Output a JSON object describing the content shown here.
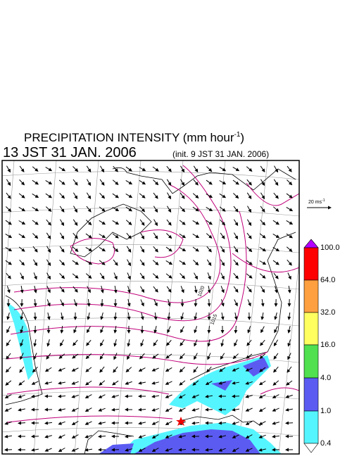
{
  "header": {
    "title": "PRECIPITATION INTENSITY (mm hour",
    "title_exponent": "-1",
    "title_end": ")",
    "valid_time": "13 JST 31 JAN. 2006",
    "init_time": "(init. 9 JST 31 JAN. 2006)"
  },
  "wind_scale": {
    "label": "20 ms",
    "exponent": "-1"
  },
  "colorbar": {
    "labels": [
      "100.0",
      "64.0",
      "32.0",
      "16.0",
      "4.0",
      "1.0",
      "0.4"
    ]
  },
  "contours": {
    "labels": [
      "1020",
      "1015"
    ]
  }
}
